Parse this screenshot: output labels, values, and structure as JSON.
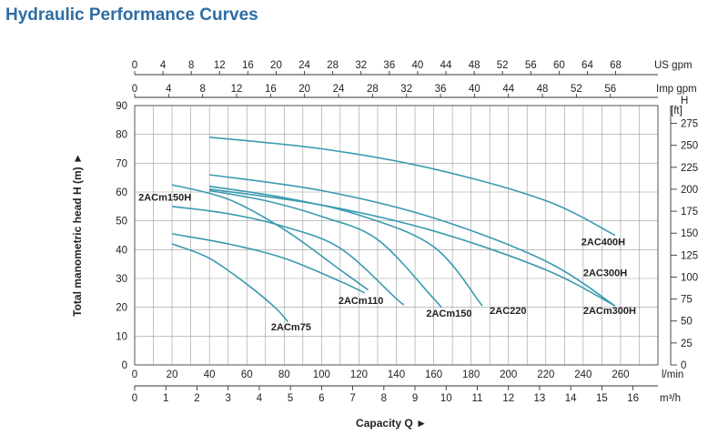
{
  "page_title": "Hydraulic Performance Curves",
  "chart_data": {
    "type": "line",
    "ylabel": "Total manometric head H (m)",
    "ylabel_arrow": "►",
    "xlabel": "Capacity Q",
    "xlabel_arrow": "►",
    "xlim": [
      0,
      280
    ],
    "ylim": [
      0,
      90
    ],
    "grid": true,
    "axes": {
      "left": {
        "unit": "",
        "ticks": [
          0,
          10,
          20,
          30,
          40,
          50,
          60,
          70,
          80,
          90
        ]
      },
      "right": {
        "unit_top": "H",
        "unit": "[ft]",
        "ticks": [
          0,
          25,
          50,
          75,
          100,
          125,
          150,
          175,
          200,
          225,
          250,
          275
        ],
        "per_m": 3.281
      },
      "bottom": {
        "unit": "l/min",
        "ticks": [
          0,
          20,
          40,
          60,
          80,
          100,
          120,
          140,
          160,
          180,
          200,
          220,
          240,
          260
        ]
      },
      "bottom2": {
        "unit": "m³/h",
        "ticks": [
          0,
          1,
          2,
          3,
          4,
          5,
          6,
          7,
          8,
          9,
          10,
          11,
          12,
          13,
          14,
          15,
          16
        ],
        "per_lpm": 0.06
      },
      "top1": {
        "unit": "US gpm",
        "ticks": [
          0,
          4,
          8,
          12,
          16,
          20,
          24,
          28,
          32,
          36,
          40,
          44,
          48,
          52,
          56,
          60,
          64,
          68
        ],
        "per_lpm": 0.2642
      },
      "top2": {
        "unit": "Imp gpm",
        "ticks": [
          0,
          4,
          8,
          12,
          16,
          20,
          24,
          28,
          32,
          36,
          40,
          44,
          48,
          52,
          56
        ],
        "per_lpm": 0.22
      }
    },
    "series": [
      {
        "name": "2ACm75",
        "x": [
          20,
          40,
          60,
          75,
          82
        ],
        "y": [
          42,
          37,
          28,
          20,
          15
        ]
      },
      {
        "name": "2ACm110",
        "x": [
          20,
          50,
          80,
          110,
          123
        ],
        "y": [
          45.5,
          42,
          37,
          29,
          25
        ]
      },
      {
        "name": "2ACm150H",
        "x": [
          20,
          50,
          80,
          110,
          125
        ],
        "y": [
          62.5,
          57.5,
          47,
          33,
          26
        ]
      },
      {
        "name": "2ACm150",
        "x": [
          20,
          50,
          80,
          110,
          140,
          144
        ],
        "y": [
          55,
          52.5,
          48,
          40.5,
          23,
          21
        ]
      },
      {
        "name": "2AC220",
        "x": [
          40,
          70,
          100,
          130,
          160,
          164
        ],
        "y": [
          60.5,
          57,
          51.5,
          43.5,
          23,
          20
        ]
      },
      {
        "name": "2ACm300H",
        "x": [
          40,
          80,
          120,
          160,
          186
        ],
        "y": [
          62,
          58,
          52,
          41,
          20.5
        ]
      },
      {
        "name": "2AC300H",
        "x": [
          40,
          100,
          160,
          220,
          257
        ],
        "y": [
          66,
          60.5,
          51,
          36,
          20.5
        ]
      },
      {
        "name": "2ACm300H",
        "x": [
          40,
          100,
          160,
          220,
          257
        ],
        "y": [
          61,
          55.5,
          46.5,
          33,
          20.5
        ]
      },
      {
        "name": "2AC400H",
        "x": [
          40,
          100,
          160,
          220,
          257
        ],
        "y": [
          79,
          75,
          68,
          57,
          45
        ]
      }
    ],
    "labels": [
      {
        "text": "2ACm75",
        "x": 73,
        "y": 12
      },
      {
        "text": "2ACm110",
        "x": 109,
        "y": 21.2
      },
      {
        "text": "2ACm150H",
        "x": 2,
        "y": 57
      },
      {
        "text": "2ACm150",
        "x": 156,
        "y": 16.7
      },
      {
        "text": "2AC220",
        "x": 190,
        "y": 17.7
      },
      {
        "text": "2ACm300H",
        "x": 240,
        "y": 17.7
      },
      {
        "text": "2AC300H",
        "x": 240,
        "y": 30.8
      },
      {
        "text": "2AC400H",
        "x": 239,
        "y": 41.6
      }
    ],
    "colors": {
      "curve": "#3a9ab0",
      "title": "#2e6da4"
    }
  }
}
